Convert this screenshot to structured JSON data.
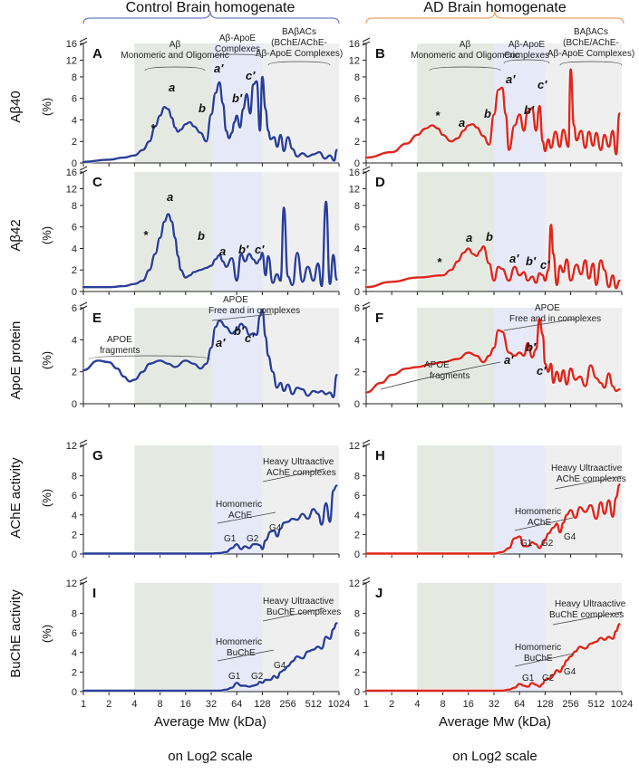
{
  "figure": {
    "columns": [
      {
        "title": "Control Brain homogenate",
        "color": "#6b7fc4"
      },
      {
        "title": "AD Brain homogenate",
        "color": "#e8a36a"
      }
    ],
    "xlabel": "Average Mw (kDa)",
    "scale_note": "on Log2 scale",
    "x_ticks": [
      "1",
      "2",
      "4",
      "8",
      "16",
      "32",
      "64",
      "128",
      "256",
      "512",
      "1024"
    ],
    "unit": "(%)",
    "row_labels": [
      "Aβ40",
      "Aβ42",
      "ApoE protein",
      "AChE activity",
      "BuChE activity"
    ],
    "region_colors": {
      "green": "#e4e9e1",
      "blue": "#e6e9f7",
      "gray": "#efefef"
    },
    "line_colors": {
      "control": "#2a3f9a",
      "ad": "#e0261c"
    }
  },
  "annotations": {
    "abeta_mono": "Aβ Monomeric and Oligomeric",
    "abeta_apoe": "Aβ-ApoE Complexes",
    "babacs": "BAβACs (BChE/AChE-Aβ-ApoE Complexes)",
    "apoe_fragments": "APOE fragments",
    "apoe_free": "APOE Free and in complexes",
    "homomeric_ache": "Homomeric AChE",
    "homomeric_buche": "Homomeric BuChE",
    "heavy_ache": "Heavy Ultraactive AChE complexes",
    "heavy_buche": "Heavy Ultraactive BuChE complexes",
    "peaks": {
      "star": "*",
      "a": "a",
      "b": "b",
      "a1": "a′",
      "b1": "b′",
      "c1": "c′"
    },
    "g": {
      "g1": "G1",
      "g2": "G2",
      "g4": "G4"
    }
  },
  "chart_data": [
    {
      "type": "line",
      "panel": "A",
      "title": "Control Aβ40",
      "ylim": [
        0,
        16
      ],
      "yticks": [
        0,
        2,
        4,
        6,
        8,
        12,
        16
      ],
      "x": [
        1,
        2,
        3,
        4,
        5,
        6,
        7,
        8,
        9,
        10,
        11,
        12,
        13,
        14,
        16,
        18,
        20,
        24,
        28,
        32,
        36,
        40,
        44,
        48,
        52,
        56,
        60,
        64,
        70,
        76,
        84,
        92,
        100,
        110,
        120,
        128,
        140,
        150,
        160,
        176,
        192,
        210,
        230,
        256,
        290,
        330,
        380,
        440,
        512,
        600,
        700,
        800,
        900,
        960
      ],
      "values": [
        0.1,
        0.3,
        0.5,
        0.7,
        1.2,
        2.0,
        3.4,
        4.4,
        5.2,
        5.0,
        4.2,
        3.3,
        2.9,
        3.1,
        3.6,
        3.8,
        3.4,
        2.8,
        2.0,
        4.5,
        6.5,
        7.5,
        5.5,
        3.0,
        2.3,
        2.8,
        3.8,
        4.4,
        3.3,
        5.0,
        6.4,
        4.6,
        7.3,
        7.6,
        3.0,
        8.0,
        5.0,
        3.0,
        2.2,
        2.4,
        1.5,
        2.6,
        1.1,
        2.4,
        1.3,
        0.6,
        0.9,
        0.6,
        0.8,
        1.0,
        0.4,
        0.7,
        0.2,
        1.2
      ]
    },
    {
      "type": "line",
      "panel": "B",
      "title": "AD Aβ40",
      "ylim": [
        0,
        16
      ],
      "yticks": [
        0,
        2,
        4,
        6,
        8,
        12,
        16
      ],
      "x": [
        1,
        2,
        3,
        4,
        5,
        6,
        7,
        8,
        10,
        12,
        14,
        16,
        18,
        20,
        24,
        28,
        32,
        36,
        40,
        44,
        48,
        56,
        64,
        72,
        80,
        90,
        100,
        110,
        120,
        128,
        140,
        150,
        170,
        190,
        210,
        240,
        256,
        280,
        300,
        340,
        380,
        420,
        470,
        512,
        580,
        640,
        720,
        800,
        880,
        960
      ],
      "values": [
        0.5,
        1.0,
        1.8,
        2.6,
        3.2,
        3.5,
        3.2,
        2.6,
        2.0,
        2.3,
        3.0,
        3.5,
        3.6,
        3.3,
        2.5,
        1.7,
        4.5,
        6.8,
        7.0,
        4.5,
        1.2,
        3.5,
        4.5,
        3.0,
        4.8,
        5.1,
        3.0,
        5.3,
        2.0,
        1.1,
        2.2,
        1.4,
        2.9,
        1.5,
        3.1,
        1.5,
        9.8,
        3.5,
        2.1,
        3.0,
        1.4,
        2.9,
        1.6,
        2.8,
        1.2,
        2.6,
        1.5,
        3.0,
        0.8,
        4.6
      ]
    },
    {
      "type": "line",
      "panel": "C",
      "title": "Control Aβ42",
      "ylim": [
        0,
        16
      ],
      "yticks": [
        0,
        2,
        4,
        6,
        8,
        12,
        16
      ],
      "x": [
        1,
        2,
        3,
        4,
        5,
        6,
        7,
        8,
        9,
        10,
        11,
        12,
        13,
        14,
        16,
        18,
        20,
        24,
        28,
        32,
        36,
        40,
        44,
        48,
        56,
        64,
        72,
        80,
        90,
        100,
        110,
        120,
        128,
        140,
        150,
        170,
        190,
        210,
        230,
        256,
        290,
        330,
        380,
        440,
        512,
        580,
        640,
        720,
        800,
        880,
        960
      ],
      "values": [
        0.4,
        0.4,
        0.5,
        0.7,
        1.0,
        2.0,
        3.5,
        5.0,
        6.5,
        7.2,
        6.5,
        5.0,
        3.3,
        2.0,
        1.3,
        1.5,
        1.8,
        2.0,
        2.2,
        2.4,
        3.0,
        3.4,
        2.8,
        2.3,
        3.1,
        1.0,
        3.5,
        2.8,
        3.5,
        3.0,
        2.6,
        3.0,
        3.6,
        1.5,
        3.3,
        0.8,
        1.6,
        1.0,
        7.8,
        1.4,
        0.6,
        3.6,
        0.9,
        2.3,
        1.0,
        2.6,
        0.5,
        8.9,
        0.7,
        3.4,
        1.1
      ]
    },
    {
      "type": "line",
      "panel": "D",
      "title": "AD Aβ42",
      "ylim": [
        0,
        16
      ],
      "yticks": [
        0,
        2,
        4,
        6,
        8,
        12,
        16
      ],
      "x": [
        1,
        2,
        4,
        8,
        10,
        12,
        14,
        16,
        18,
        20,
        22,
        24,
        28,
        32,
        36,
        40,
        48,
        56,
        64,
        72,
        80,
        90,
        100,
        110,
        120,
        128,
        140,
        150,
        160,
        176,
        192,
        210,
        230,
        256,
        300,
        340,
        380,
        420,
        470,
        512,
        580,
        640,
        720,
        800,
        880,
        960
      ],
      "values": [
        0.4,
        0.9,
        1.3,
        1.5,
        2.0,
        2.8,
        3.6,
        4.0,
        3.5,
        3.3,
        3.8,
        4.2,
        2.6,
        1.0,
        2.3,
        2.1,
        1.0,
        2.3,
        1.5,
        1.8,
        1.0,
        1.4,
        0.8,
        1.7,
        1.5,
        1.0,
        2.0,
        6.2,
        3.5,
        0.6,
        2.4,
        1.8,
        3.0,
        1.0,
        2.5,
        1.6,
        2.9,
        1.2,
        2.6,
        0.6,
        2.9,
        2.0,
        0.4,
        1.5,
        0.3,
        1.0
      ]
    },
    {
      "type": "line",
      "panel": "E",
      "title": "Control ApoE protein",
      "ylim": [
        0,
        6
      ],
      "yticks": [
        0,
        2,
        4,
        6
      ],
      "x": [
        1,
        1.5,
        2,
        2.5,
        3,
        3.5,
        4,
        5,
        6,
        8,
        10,
        12,
        16,
        20,
        24,
        28,
        32,
        36,
        40,
        48,
        56,
        64,
        72,
        80,
        90,
        100,
        110,
        120,
        128,
        140,
        150,
        170,
        190,
        210,
        230,
        256,
        290,
        330,
        380,
        440,
        512,
        580,
        640,
        720,
        800,
        880,
        960
      ],
      "values": [
        2.1,
        2.7,
        2.6,
        2.2,
        1.7,
        1.4,
        1.5,
        2.0,
        2.5,
        2.7,
        2.5,
        2.3,
        2.7,
        2.5,
        2.2,
        2.5,
        3.5,
        4.8,
        5.2,
        4.8,
        4.4,
        4.6,
        5.0,
        4.8,
        4.3,
        4.4,
        4.3,
        5.5,
        5.9,
        4.2,
        3.0,
        2.0,
        1.0,
        1.3,
        0.8,
        1.2,
        0.6,
        1.0,
        0.9,
        0.5,
        0.8,
        0.7,
        0.8,
        0.6,
        0.7,
        0.4,
        1.8
      ]
    },
    {
      "type": "line",
      "panel": "F",
      "title": "AD ApoE protein",
      "ylim": [
        0,
        6
      ],
      "yticks": [
        0,
        2,
        4,
        6
      ],
      "x": [
        1,
        1.5,
        2,
        3,
        4,
        6,
        8,
        12,
        16,
        20,
        24,
        28,
        32,
        36,
        40,
        48,
        56,
        64,
        72,
        80,
        90,
        100,
        110,
        120,
        128,
        140,
        150,
        160,
        176,
        192,
        210,
        230,
        256,
        290,
        330,
        380,
        440,
        512,
        580,
        640,
        720,
        800,
        880,
        960
      ],
      "values": [
        0.7,
        1.3,
        1.8,
        2.2,
        2.3,
        2.5,
        2.6,
        2.8,
        3.2,
        3.0,
        2.6,
        3.0,
        3.5,
        4.6,
        4.5,
        3.2,
        3.0,
        3.2,
        3.0,
        3.8,
        2.9,
        3.4,
        5.3,
        4.3,
        2.5,
        2.0,
        2.5,
        1.3,
        2.0,
        1.4,
        2.1,
        1.2,
        2.2,
        1.5,
        1.7,
        1.1,
        2.4,
        1.6,
        1.3,
        1.0,
        1.9,
        1.1,
        0.8,
        0.9
      ]
    },
    {
      "type": "line",
      "panel": "G",
      "title": "Control AChE activity",
      "ylim": [
        0,
        12
      ],
      "yticks": [
        0,
        2,
        4,
        6,
        8,
        12
      ],
      "x": [
        1,
        4,
        8,
        16,
        24,
        32,
        40,
        48,
        56,
        64,
        72,
        80,
        90,
        100,
        110,
        120,
        128,
        140,
        160,
        176,
        192,
        210,
        230,
        256,
        290,
        330,
        380,
        440,
        512,
        580,
        640,
        720,
        800,
        880,
        960
      ],
      "values": [
        0.05,
        0.05,
        0.05,
        0.05,
        0.05,
        0.05,
        0.1,
        0.2,
        0.6,
        1.0,
        0.5,
        0.8,
        0.6,
        1.0,
        1.0,
        0.9,
        0.5,
        1.4,
        2.3,
        2.4,
        1.8,
        2.6,
        3.2,
        3.3,
        3.6,
        3.5,
        4.1,
        3.6,
        4.6,
        4.1,
        3.0,
        5.2,
        3.3,
        6.5,
        7.0
      ]
    },
    {
      "type": "line",
      "panel": "H",
      "title": "AD AChE activity",
      "ylim": [
        0,
        12
      ],
      "yticks": [
        0,
        2,
        4,
        6,
        8,
        12
      ],
      "x": [
        1,
        4,
        8,
        16,
        24,
        32,
        40,
        48,
        56,
        64,
        72,
        80,
        90,
        100,
        110,
        120,
        128,
        140,
        160,
        176,
        192,
        210,
        230,
        256,
        290,
        330,
        380,
        440,
        512,
        580,
        640,
        720,
        800,
        880,
        960
      ],
      "values": [
        0.05,
        0.05,
        0.05,
        0.05,
        0.05,
        0.05,
        0.2,
        0.6,
        1.6,
        1.8,
        0.8,
        0.8,
        1.2,
        1.0,
        0.6,
        1.0,
        1.5,
        2.1,
        2.7,
        3.1,
        2.2,
        3.2,
        4.0,
        4.5,
        3.7,
        4.8,
        4.3,
        5.0,
        3.6,
        5.3,
        4.1,
        5.5,
        3.8,
        5.8,
        7.1
      ]
    },
    {
      "type": "line",
      "panel": "I",
      "title": "Control BuChE activity",
      "ylim": [
        0,
        12
      ],
      "yticks": [
        0,
        2,
        4,
        6,
        8,
        12
      ],
      "x": [
        1,
        4,
        8,
        16,
        24,
        32,
        40,
        48,
        56,
        64,
        72,
        80,
        90,
        100,
        110,
        120,
        128,
        140,
        160,
        176,
        192,
        210,
        230,
        256,
        290,
        330,
        380,
        440,
        512,
        580,
        640,
        720,
        800,
        880,
        960
      ],
      "values": [
        0.1,
        0.1,
        0.1,
        0.1,
        0.1,
        0.1,
        0.1,
        0.2,
        0.4,
        0.9,
        0.6,
        0.6,
        0.5,
        0.6,
        0.7,
        1.0,
        0.9,
        1.2,
        1.2,
        1.6,
        1.4,
        2.0,
        2.2,
        2.6,
        3.1,
        3.6,
        3.4,
        4.1,
        4.3,
        4.6,
        4.4,
        5.6,
        5.4,
        6.4,
        7.0
      ]
    },
    {
      "type": "line",
      "panel": "J",
      "title": "AD BuChE activity",
      "ylim": [
        0,
        12
      ],
      "yticks": [
        0,
        2,
        4,
        6,
        8,
        12
      ],
      "x": [
        1,
        4,
        8,
        16,
        24,
        32,
        40,
        48,
        56,
        64,
        72,
        80,
        90,
        100,
        110,
        120,
        128,
        140,
        160,
        176,
        192,
        210,
        230,
        256,
        290,
        330,
        380,
        440,
        512,
        580,
        640,
        720,
        800,
        880,
        960
      ],
      "values": [
        0.1,
        0.1,
        0.1,
        0.1,
        0.1,
        0.1,
        0.1,
        0.2,
        0.4,
        0.8,
        0.6,
        0.5,
        0.9,
        0.7,
        0.5,
        0.8,
        1.2,
        1.3,
        1.7,
        2.2,
        2.0,
        2.6,
        3.2,
        3.6,
        4.1,
        4.6,
        4.4,
        4.9,
        5.1,
        5.5,
        5.3,
        5.6,
        5.4,
        6.2,
        6.9
      ]
    }
  ]
}
